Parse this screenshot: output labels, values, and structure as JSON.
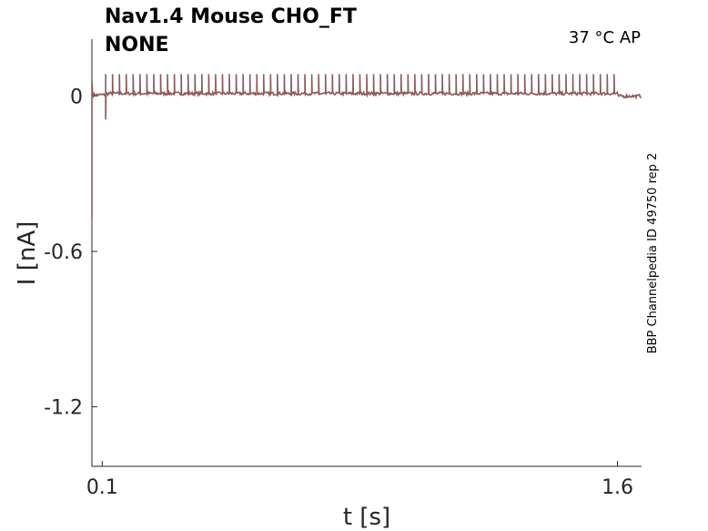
{
  "chart_data": {
    "type": "line",
    "title_line1": "Nav1.4  Mouse  CHO_FT",
    "title_line2": "NONE",
    "annotation": "37 °C  AP",
    "side_label": "BBP Channelpedia ID 49750 rep 2",
    "xlabel": "t [s]",
    "ylabel": "I [nA]",
    "xlim": [
      0.07,
      1.67
    ],
    "ylim": [
      -1.43,
      0.22
    ],
    "xticks": [
      0.1,
      1.6
    ],
    "xtick_labels": [
      "0.1",
      "1.6"
    ],
    "yticks": [
      0,
      -0.6,
      -1.2
    ],
    "ytick_labels": [
      "0",
      "-0.6",
      "-1.2"
    ],
    "line_color": "#8b5a5a",
    "grid": false,
    "series": [
      {
        "baseline_start": 0.005,
        "baseline_mid": 0.01,
        "baseline_end": 0.0,
        "stim_on": 0.11,
        "stim_off": 1.6,
        "initial_transient": {
          "x": 0.07,
          "min": -0.47,
          "max": 0.06
        },
        "onset_dip": {
          "x": 0.11,
          "y": -0.09
        },
        "spike_times": [
          0.11,
          0.13,
          0.15,
          0.17,
          0.19,
          0.21,
          0.23,
          0.25,
          0.27,
          0.29,
          0.31,
          0.33,
          0.35,
          0.37,
          0.39,
          0.41,
          0.43,
          0.45,
          0.47,
          0.49,
          0.51,
          0.53,
          0.55,
          0.57,
          0.59,
          0.61,
          0.63,
          0.65,
          0.67,
          0.69,
          0.71,
          0.73,
          0.75,
          0.77,
          0.79,
          0.81,
          0.83,
          0.85,
          0.87,
          0.89,
          0.91,
          0.93,
          0.95,
          0.97,
          0.99,
          1.01,
          1.03,
          1.05,
          1.07,
          1.09,
          1.11,
          1.13,
          1.15,
          1.17,
          1.19,
          1.21,
          1.23,
          1.25,
          1.27,
          1.29,
          1.31,
          1.33,
          1.35,
          1.37,
          1.39,
          1.41,
          1.43,
          1.45,
          1.47,
          1.49,
          1.51,
          1.53,
          1.55,
          1.57,
          1.59
        ],
        "spike_peak": 0.075
      }
    ]
  }
}
